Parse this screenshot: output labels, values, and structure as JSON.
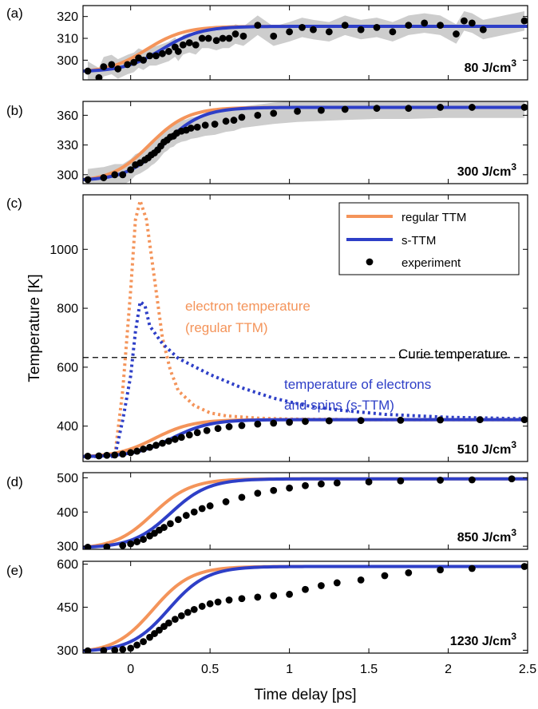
{
  "chart_data": {
    "type": "line",
    "xlabel": "Time delay [ps]",
    "ylabel": "Temperature [K]",
    "xlim": [
      -0.3,
      2.5
    ],
    "x_ticks": [
      0,
      0.5,
      1,
      1.5,
      2,
      2.5
    ],
    "x_tick_labels": [
      "0",
      "0.5",
      "1",
      "1.5",
      "2",
      "2.5"
    ],
    "colors": {
      "regular": "#F4945A",
      "sttm": "#2E3FC7",
      "experiment": "#000000",
      "band": "#C8C8C8"
    },
    "legend": {
      "placement": "top-right of panel (c)",
      "entries": [
        "regular TTM",
        "s-TTM",
        "experiment"
      ]
    },
    "panels": [
      {
        "label": "(a)",
        "fluence": "80 J/cm",
        "fluence_sup": "3",
        "ylim": [
          291,
          325
        ],
        "y_ticks": [
          300,
          310,
          320
        ],
        "T0": 295,
        "Tf": 315.5,
        "regular_tau": 0.1,
        "sttm_tau": 0.2,
        "band": true,
        "grid": false,
        "experiment": [
          [
            -0.27,
            295
          ],
          [
            -0.2,
            292
          ],
          [
            -0.17,
            297
          ],
          [
            -0.12,
            298
          ],
          [
            -0.08,
            296
          ],
          [
            -0.02,
            298
          ],
          [
            0.02,
            299
          ],
          [
            0.05,
            301
          ],
          [
            0.08,
            300
          ],
          [
            0.12,
            302
          ],
          [
            0.16,
            302
          ],
          [
            0.2,
            303
          ],
          [
            0.24,
            304
          ],
          [
            0.28,
            306
          ],
          [
            0.3,
            304
          ],
          [
            0.33,
            307
          ],
          [
            0.37,
            308
          ],
          [
            0.41,
            307
          ],
          [
            0.45,
            310
          ],
          [
            0.49,
            310
          ],
          [
            0.54,
            309
          ],
          [
            0.58,
            310
          ],
          [
            0.62,
            310
          ],
          [
            0.66,
            312
          ],
          [
            0.71,
            311
          ],
          [
            0.8,
            316
          ],
          [
            0.9,
            311
          ],
          [
            1.0,
            313
          ],
          [
            1.08,
            315
          ],
          [
            1.15,
            314
          ],
          [
            1.25,
            313
          ],
          [
            1.35,
            316
          ],
          [
            1.45,
            314
          ],
          [
            1.55,
            315
          ],
          [
            1.65,
            313
          ],
          [
            1.75,
            316
          ],
          [
            1.85,
            317
          ],
          [
            1.95,
            316
          ],
          [
            2.05,
            312
          ],
          [
            2.1,
            318
          ],
          [
            2.15,
            317
          ],
          [
            2.22,
            314
          ],
          [
            2.48,
            318
          ]
        ]
      },
      {
        "label": "(b)",
        "fluence": "300 J/cm",
        "fluence_sup": "3",
        "ylim": [
          291,
          374
        ],
        "y_ticks": [
          300,
          330,
          360
        ],
        "T0": 295,
        "Tf": 368,
        "regular_tau": 0.12,
        "sttm_tau": 0.21,
        "band": true,
        "grid": false,
        "experiment": [
          [
            -0.27,
            295
          ],
          [
            -0.17,
            297
          ],
          [
            -0.1,
            300
          ],
          [
            -0.05,
            300
          ],
          [
            0.0,
            305
          ],
          [
            0.03,
            310
          ],
          [
            0.06,
            312
          ],
          [
            0.09,
            315
          ],
          [
            0.11,
            317
          ],
          [
            0.13,
            320
          ],
          [
            0.15,
            322
          ],
          [
            0.17,
            325
          ],
          [
            0.19,
            329
          ],
          [
            0.21,
            333
          ],
          [
            0.23,
            335
          ],
          [
            0.25,
            338
          ],
          [
            0.27,
            339
          ],
          [
            0.29,
            342
          ],
          [
            0.32,
            344
          ],
          [
            0.35,
            345
          ],
          [
            0.38,
            347
          ],
          [
            0.42,
            348
          ],
          [
            0.47,
            350
          ],
          [
            0.53,
            351
          ],
          [
            0.6,
            354
          ],
          [
            0.65,
            355
          ],
          [
            0.7,
            358
          ],
          [
            0.8,
            360
          ],
          [
            0.9,
            362
          ],
          [
            1.05,
            364
          ],
          [
            1.2,
            365
          ],
          [
            1.35,
            366
          ],
          [
            1.55,
            367
          ],
          [
            1.75,
            367
          ],
          [
            1.95,
            368
          ],
          [
            2.15,
            368
          ],
          [
            2.48,
            368
          ]
        ]
      },
      {
        "label": "(c)",
        "fluence": "510 J/cm",
        "fluence_sup": "3",
        "ylim": [
          280,
          1185
        ],
        "y_ticks": [
          400,
          600,
          800,
          1000
        ],
        "T0": 297,
        "Tf": 422,
        "regular_tau": 0.15,
        "sttm_tau": 0.26,
        "band": false,
        "grid": false,
        "electron_regular": [
          [
            -0.3,
            297
          ],
          [
            -0.1,
            297
          ],
          [
            -0.05,
            520
          ],
          [
            0.0,
            860
          ],
          [
            0.03,
            1100
          ],
          [
            0.06,
            1165
          ],
          [
            0.1,
            1100
          ],
          [
            0.15,
            900
          ],
          [
            0.2,
            700
          ],
          [
            0.25,
            590
          ],
          [
            0.3,
            520
          ],
          [
            0.4,
            470
          ],
          [
            0.5,
            445
          ],
          [
            0.6,
            435
          ],
          [
            0.8,
            427
          ],
          [
            1.0,
            424
          ],
          [
            1.5,
            422
          ],
          [
            2.5,
            422
          ]
        ],
        "electron_sttm": [
          [
            -0.3,
            297
          ],
          [
            -0.1,
            297
          ],
          [
            -0.05,
            420
          ],
          [
            0.0,
            570
          ],
          [
            0.03,
            720
          ],
          [
            0.06,
            822
          ],
          [
            0.09,
            810
          ],
          [
            0.12,
            740
          ],
          [
            0.2,
            680
          ],
          [
            0.3,
            630
          ],
          [
            0.5,
            575
          ],
          [
            0.7,
            530
          ],
          [
            0.9,
            495
          ],
          [
            1.1,
            470
          ],
          [
            1.3,
            455
          ],
          [
            1.6,
            440
          ],
          [
            2.0,
            430
          ],
          [
            2.5,
            425
          ]
        ],
        "experiment": [
          [
            -0.27,
            298
          ],
          [
            -0.2,
            299
          ],
          [
            -0.15,
            301
          ],
          [
            -0.1,
            302
          ],
          [
            -0.05,
            305
          ],
          [
            0.0,
            310
          ],
          [
            0.04,
            315
          ],
          [
            0.08,
            322
          ],
          [
            0.12,
            328
          ],
          [
            0.16,
            335
          ],
          [
            0.2,
            342
          ],
          [
            0.24,
            349
          ],
          [
            0.28,
            355
          ],
          [
            0.32,
            362
          ],
          [
            0.37,
            370
          ],
          [
            0.42,
            378
          ],
          [
            0.48,
            385
          ],
          [
            0.55,
            392
          ],
          [
            0.62,
            398
          ],
          [
            0.7,
            402
          ],
          [
            0.8,
            407
          ],
          [
            0.9,
            410
          ],
          [
            1.0,
            413
          ],
          [
            1.1,
            416
          ],
          [
            1.25,
            418
          ],
          [
            1.45,
            419
          ],
          [
            1.7,
            420
          ],
          [
            1.95,
            421
          ],
          [
            2.2,
            422
          ],
          [
            2.48,
            422
          ]
        ]
      },
      {
        "label": "(d)",
        "fluence": "850 J/cm",
        "fluence_sup": "3",
        "ylim": [
          291,
          515
        ],
        "y_ticks": [
          300,
          400,
          500
        ],
        "T0": 297,
        "Tf": 497,
        "regular_tau": 0.14,
        "sttm_tau": 0.25,
        "band": false,
        "grid": false,
        "experiment": [
          [
            -0.27,
            297
          ],
          [
            -0.15,
            298
          ],
          [
            -0.05,
            302
          ],
          [
            0.0,
            307
          ],
          [
            0.04,
            313
          ],
          [
            0.08,
            320
          ],
          [
            0.12,
            330
          ],
          [
            0.15,
            338
          ],
          [
            0.18,
            347
          ],
          [
            0.21,
            355
          ],
          [
            0.25,
            366
          ],
          [
            0.3,
            378
          ],
          [
            0.35,
            390
          ],
          [
            0.4,
            400
          ],
          [
            0.45,
            410
          ],
          [
            0.5,
            418
          ],
          [
            0.6,
            430
          ],
          [
            0.7,
            443
          ],
          [
            0.8,
            455
          ],
          [
            0.9,
            463
          ],
          [
            1.0,
            470
          ],
          [
            1.1,
            477
          ],
          [
            1.2,
            482
          ],
          [
            1.3,
            485
          ],
          [
            1.5,
            488
          ],
          [
            1.7,
            491
          ],
          [
            1.95,
            493
          ],
          [
            2.15,
            494
          ],
          [
            2.4,
            497
          ]
        ]
      },
      {
        "label": "(e)",
        "fluence": "1230 J/cm",
        "fluence_sup": "3",
        "ylim": [
          290,
          610
        ],
        "y_ticks": [
          300,
          450,
          600
        ],
        "T0": 298,
        "Tf": 592,
        "regular_tau": 0.14,
        "sttm_tau": 0.24,
        "band": false,
        "grid": false,
        "experiment": [
          [
            -0.27,
            298
          ],
          [
            -0.17,
            299
          ],
          [
            -0.1,
            300
          ],
          [
            -0.05,
            303
          ],
          [
            0.0,
            307
          ],
          [
            0.04,
            318
          ],
          [
            0.08,
            330
          ],
          [
            0.12,
            345
          ],
          [
            0.15,
            358
          ],
          [
            0.18,
            370
          ],
          [
            0.21,
            383
          ],
          [
            0.24,
            395
          ],
          [
            0.28,
            408
          ],
          [
            0.32,
            420
          ],
          [
            0.36,
            432
          ],
          [
            0.4,
            442
          ],
          [
            0.45,
            453
          ],
          [
            0.5,
            462
          ],
          [
            0.55,
            468
          ],
          [
            0.62,
            475
          ],
          [
            0.7,
            480
          ],
          [
            0.8,
            485
          ],
          [
            0.9,
            490
          ],
          [
            1.0,
            495
          ],
          [
            1.1,
            512
          ],
          [
            1.2,
            525
          ],
          [
            1.3,
            535
          ],
          [
            1.45,
            545
          ],
          [
            1.6,
            560
          ],
          [
            1.75,
            570
          ],
          [
            1.95,
            580
          ],
          [
            2.15,
            585
          ],
          [
            2.48,
            592
          ]
        ]
      }
    ],
    "annotations": {
      "electron_regular": [
        "electron temperature",
        "(regular TTM)"
      ],
      "electron_sttm": [
        "temperature of electrons",
        "and spins (s-TTM)"
      ],
      "curie": "Curie temperature",
      "curie_value": 633
    }
  }
}
